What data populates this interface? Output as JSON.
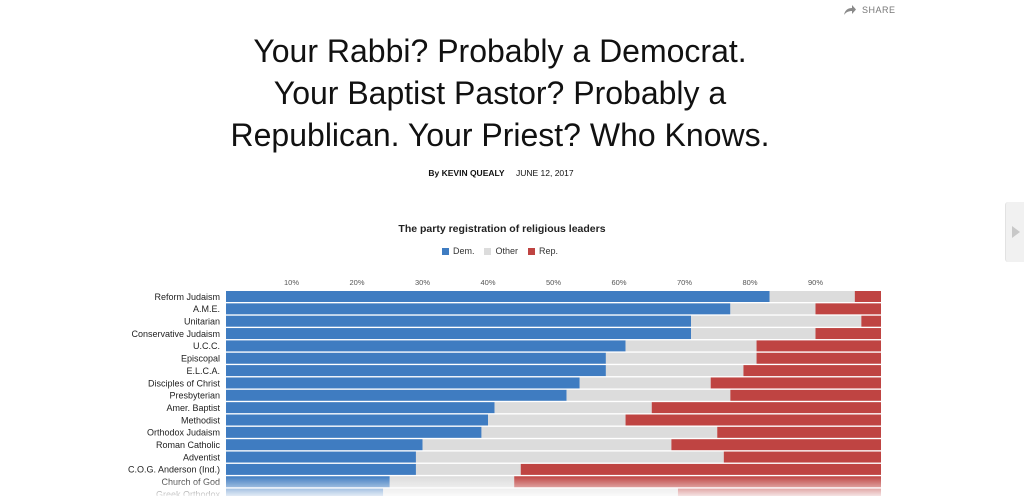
{
  "share": {
    "label": "SHARE",
    "icon": "share-arrow-icon"
  },
  "headline": {
    "lines": [
      "Your Rabbi? Probably a Democrat.",
      "Your Baptist Pastor? Probably a",
      "Republican. Your Priest? Who Knows."
    ]
  },
  "byline": {
    "prefix": "By",
    "author": "KEVIN QUEALY",
    "date": "JUNE 12, 2017"
  },
  "colors": {
    "dem": "#3f7cc1",
    "other": "#dcdcdc",
    "rep": "#bf4442",
    "side_tab_icon": "#c8c8c8"
  },
  "chart_data": {
    "type": "bar",
    "orientation": "horizontal",
    "stacked": true,
    "normalized": true,
    "title": "The party registration of religious leaders",
    "legend": [
      "Dem.",
      "Other",
      "Rep."
    ],
    "legend_position": "top-center",
    "x_ticks": [
      "10%",
      "20%",
      "30%",
      "40%",
      "50%",
      "60%",
      "70%",
      "80%",
      "90%"
    ],
    "xlim": [
      0,
      100
    ],
    "categories": [
      "Reform Judaism",
      "A.M.E.",
      "Unitarian",
      "Conservative Judaism",
      "U.C.C.",
      "Episcopal",
      "E.L.C.A.",
      "Disciples of Christ",
      "Presbyterian",
      "Amer. Baptist",
      "Methodist",
      "Orthodox Judaism",
      "Roman Catholic",
      "Adventist",
      "C.O.G. Anderson (Ind.)",
      "Church of God",
      "Greek Orthodox"
    ],
    "series": [
      {
        "name": "Dem.",
        "values": [
          83,
          77,
          71,
          71,
          61,
          58,
          58,
          54,
          52,
          41,
          40,
          39,
          30,
          29,
          29,
          25,
          24
        ]
      },
      {
        "name": "Other",
        "values": [
          13,
          13,
          26,
          19,
          20,
          23,
          21,
          20,
          25,
          24,
          21,
          36,
          38,
          47,
          16,
          19,
          45
        ]
      },
      {
        "name": "Rep.",
        "values": [
          4,
          10,
          3,
          10,
          19,
          19,
          21,
          26,
          23,
          35,
          39,
          25,
          32,
          24,
          55,
          56,
          31
        ]
      }
    ]
  }
}
